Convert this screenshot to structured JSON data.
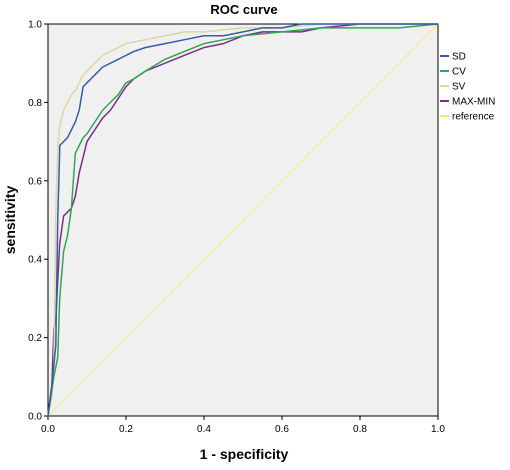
{
  "chart_data": {
    "type": "line",
    "title": "ROC curve",
    "xlabel": "1 - specificity",
    "ylabel": "sensitivity",
    "xlim": [
      0,
      1
    ],
    "ylim": [
      0,
      1
    ],
    "xticks": [
      "0.0",
      "0.2",
      "0.4",
      "0.6",
      "0.8",
      "1.0"
    ],
    "yticks": [
      "0.0",
      "0.2",
      "0.4",
      "0.6",
      "0.8",
      "1.0"
    ],
    "grid": false,
    "legend_position": "right",
    "plot_background": "#f0f0f0",
    "series": [
      {
        "name": "SD",
        "color": "#3b5ba5",
        "x": [
          0,
          0.01,
          0.02,
          0.025,
          0.03,
          0.03,
          0.04,
          0.05,
          0.06,
          0.07,
          0.08,
          0.09,
          0.1,
          0.11,
          0.12,
          0.13,
          0.14,
          0.16,
          0.18,
          0.2,
          0.22,
          0.25,
          0.3,
          0.35,
          0.4,
          0.45,
          0.5,
          0.55,
          0.6,
          0.65,
          0.7,
          0.8,
          0.9,
          1.0
        ],
        "y": [
          0,
          0.08,
          0.18,
          0.5,
          0.68,
          0.69,
          0.7,
          0.71,
          0.73,
          0.75,
          0.78,
          0.84,
          0.85,
          0.86,
          0.87,
          0.88,
          0.89,
          0.9,
          0.91,
          0.92,
          0.93,
          0.94,
          0.95,
          0.96,
          0.97,
          0.97,
          0.98,
          0.99,
          0.99,
          1.0,
          1.0,
          1.0,
          1.0,
          1.0
        ]
      },
      {
        "name": "CV",
        "color": "#2fa84f",
        "x": [
          0,
          0.015,
          0.025,
          0.03,
          0.04,
          0.05,
          0.06,
          0.07,
          0.08,
          0.09,
          0.1,
          0.12,
          0.14,
          0.16,
          0.18,
          0.2,
          0.22,
          0.25,
          0.3,
          0.35,
          0.4,
          0.45,
          0.5,
          0.6,
          0.7,
          0.8,
          0.9,
          1.0
        ],
        "y": [
          0,
          0.1,
          0.15,
          0.3,
          0.42,
          0.46,
          0.53,
          0.67,
          0.69,
          0.71,
          0.72,
          0.75,
          0.78,
          0.8,
          0.82,
          0.85,
          0.86,
          0.88,
          0.91,
          0.93,
          0.95,
          0.96,
          0.97,
          0.98,
          0.99,
          0.99,
          0.99,
          1.0
        ]
      },
      {
        "name": "SV",
        "color": "#d8d8a8",
        "x": [
          0,
          0.01,
          0.015,
          0.02,
          0.025,
          0.03,
          0.04,
          0.05,
          0.06,
          0.07,
          0.08,
          0.09,
          0.1,
          0.12,
          0.14,
          0.16,
          0.18,
          0.2,
          0.25,
          0.3,
          0.35,
          0.4,
          0.5,
          0.6,
          0.7,
          0.8,
          0.9,
          1.0
        ],
        "y": [
          0,
          0.05,
          0.12,
          0.52,
          0.68,
          0.74,
          0.78,
          0.8,
          0.82,
          0.83,
          0.85,
          0.87,
          0.88,
          0.9,
          0.92,
          0.93,
          0.94,
          0.95,
          0.96,
          0.97,
          0.98,
          0.98,
          0.99,
          0.99,
          1.0,
          1.0,
          1.0,
          1.0
        ]
      },
      {
        "name": "MAX-MIN",
        "color": "#7b2d8e",
        "x": [
          0,
          0.01,
          0.015,
          0.02,
          0.03,
          0.04,
          0.05,
          0.06,
          0.07,
          0.08,
          0.09,
          0.1,
          0.12,
          0.14,
          0.16,
          0.18,
          0.2,
          0.22,
          0.25,
          0.3,
          0.35,
          0.4,
          0.45,
          0.5,
          0.55,
          0.6,
          0.65,
          0.7,
          0.8,
          0.9,
          1.0
        ],
        "y": [
          0,
          0.08,
          0.22,
          0.25,
          0.44,
          0.51,
          0.52,
          0.53,
          0.56,
          0.62,
          0.66,
          0.7,
          0.73,
          0.76,
          0.78,
          0.81,
          0.84,
          0.86,
          0.88,
          0.9,
          0.92,
          0.94,
          0.95,
          0.97,
          0.98,
          0.98,
          0.98,
          0.99,
          1.0,
          1.0,
          1.0
        ]
      },
      {
        "name": "reference",
        "color": "#f0ee7a",
        "x": [
          0,
          1
        ],
        "y": [
          0,
          1
        ]
      }
    ]
  }
}
